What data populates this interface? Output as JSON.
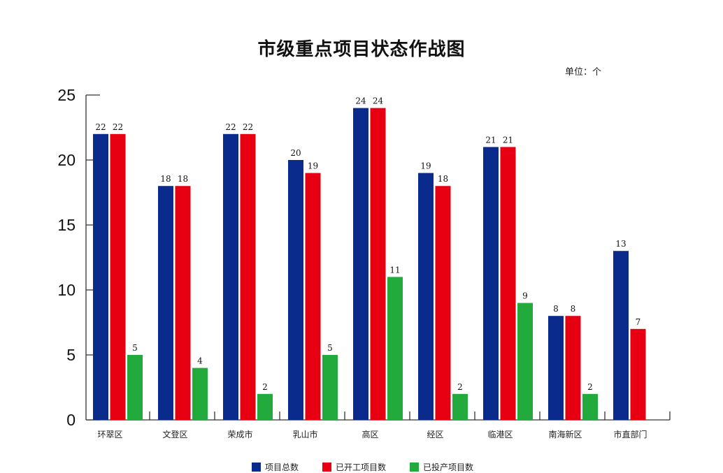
{
  "chart_data": {
    "type": "bar",
    "title": "市级重点项目状态作战图",
    "unit_label": "单位：个",
    "xlabel": "",
    "ylabel": "",
    "ylim": [
      0,
      25
    ],
    "yticks": [
      0,
      5,
      10,
      15,
      20,
      25
    ],
    "grid": false,
    "legend_position": "bottom",
    "categories": [
      "环翠区",
      "文登区",
      "荣成市",
      "乳山市",
      "高区",
      "经区",
      "临港区",
      "南海新区",
      "市直部门"
    ],
    "series": [
      {
        "name": "项目总数",
        "color": "#0a2a8c",
        "values": [
          22,
          18,
          22,
          20,
          24,
          19,
          21,
          8,
          13
        ]
      },
      {
        "name": "已开工项目数",
        "color": "#e60012",
        "values": [
          22,
          18,
          22,
          19,
          24,
          18,
          21,
          8,
          7
        ]
      },
      {
        "name": "已投产项目数",
        "color": "#22aa3c",
        "values": [
          5,
          4,
          2,
          5,
          11,
          2,
          9,
          2,
          null
        ]
      }
    ]
  }
}
